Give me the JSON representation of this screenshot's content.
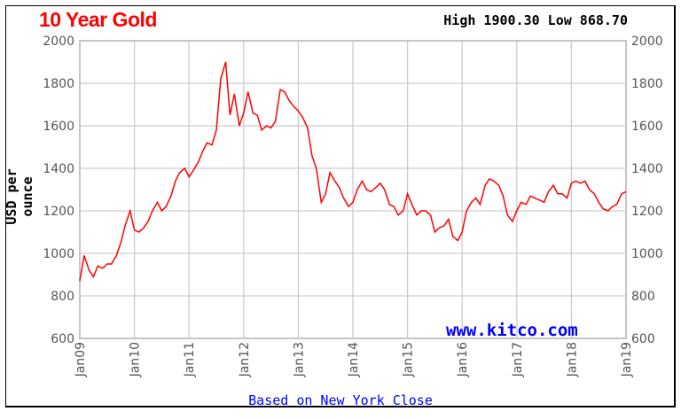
{
  "chart_data": {
    "type": "line",
    "title": "10 Year Gold",
    "summary": "High 1900.30 Low 868.70",
    "ylabel": "USD per ounce",
    "xlabel": "",
    "ylim": [
      600,
      2000
    ],
    "yticks": [
      "600",
      "800",
      "1000",
      "1200",
      "1400",
      "1600",
      "1800",
      "2000"
    ],
    "xticks": [
      "Jan09",
      "Jan10",
      "Jan11",
      "Jan12",
      "Jan13",
      "Jan14",
      "Jan15",
      "Jan16",
      "Jan17",
      "Jan18",
      "Jan19"
    ],
    "grid": true,
    "series": [
      {
        "name": "Gold",
        "color": "#ff0000",
        "x_years_since_jan09": [
          0,
          0.08,
          0.17,
          0.25,
          0.33,
          0.42,
          0.5,
          0.58,
          0.67,
          0.75,
          0.83,
          0.92,
          1,
          1.08,
          1.17,
          1.25,
          1.33,
          1.42,
          1.5,
          1.58,
          1.67,
          1.75,
          1.83,
          1.92,
          2,
          2.08,
          2.17,
          2.25,
          2.33,
          2.42,
          2.5,
          2.58,
          2.67,
          2.75,
          2.83,
          2.92,
          3,
          3.08,
          3.17,
          3.25,
          3.33,
          3.42,
          3.5,
          3.58,
          3.67,
          3.75,
          3.83,
          3.92,
          4,
          4.08,
          4.17,
          4.25,
          4.33,
          4.42,
          4.5,
          4.58,
          4.67,
          4.75,
          4.83,
          4.92,
          5,
          5.08,
          5.17,
          5.25,
          5.33,
          5.42,
          5.5,
          5.58,
          5.67,
          5.75,
          5.83,
          5.92,
          6,
          6.08,
          6.17,
          6.25,
          6.33,
          6.42,
          6.5,
          6.58,
          6.67,
          6.75,
          6.83,
          6.92,
          7,
          7.08,
          7.17,
          7.25,
          7.33,
          7.42,
          7.5,
          7.58,
          7.67,
          7.75,
          7.83,
          7.92,
          8,
          8.08,
          8.17,
          8.25,
          8.33,
          8.42,
          8.5,
          8.58,
          8.67,
          8.75,
          8.83,
          8.92,
          9,
          9.08,
          9.17,
          9.25,
          9.33,
          9.42,
          9.5,
          9.58,
          9.67,
          9.75,
          9.83,
          9.92,
          10
        ],
        "values": [
          870,
          990,
          920,
          890,
          940,
          930,
          950,
          950,
          990,
          1050,
          1130,
          1200,
          1110,
          1100,
          1120,
          1150,
          1200,
          1240,
          1200,
          1220,
          1270,
          1340,
          1380,
          1400,
          1360,
          1390,
          1430,
          1480,
          1520,
          1510,
          1580,
          1820,
          1900,
          1650,
          1750,
          1600,
          1660,
          1760,
          1660,
          1650,
          1580,
          1600,
          1590,
          1620,
          1770,
          1760,
          1720,
          1690,
          1670,
          1640,
          1590,
          1460,
          1400,
          1240,
          1280,
          1380,
          1340,
          1310,
          1260,
          1220,
          1240,
          1300,
          1340,
          1300,
          1290,
          1310,
          1330,
          1300,
          1230,
          1220,
          1180,
          1200,
          1280,
          1230,
          1180,
          1200,
          1200,
          1180,
          1100,
          1120,
          1130,
          1160,
          1080,
          1060,
          1100,
          1200,
          1240,
          1260,
          1230,
          1320,
          1350,
          1340,
          1320,
          1270,
          1180,
          1150,
          1200,
          1240,
          1230,
          1270,
          1260,
          1250,
          1240,
          1290,
          1320,
          1280,
          1280,
          1260,
          1330,
          1340,
          1330,
          1340,
          1300,
          1280,
          1240,
          1210,
          1200,
          1220,
          1230,
          1280,
          1290
        ]
      }
    ]
  },
  "footer": {
    "site": "www.kitco.com",
    "note": "Based on New York Close"
  }
}
